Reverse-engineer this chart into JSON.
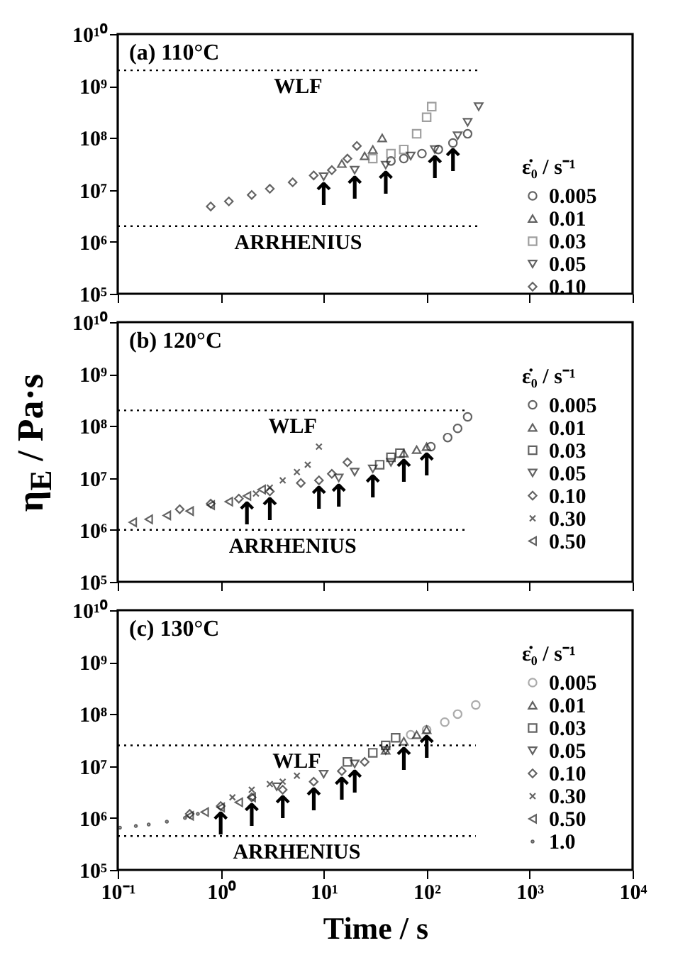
{
  "chart_data": [
    {
      "type": "scatter",
      "title": "(a)  110°C",
      "xlim": [
        0.1,
        10000
      ],
      "ylim": [
        100000,
        10000000000
      ],
      "log": "xy",
      "tick_labels": "y",
      "legend": "bottom right",
      "legend_title": "ε̇₀ / s⁻¹",
      "xticks": [
        {
          "value": 0.1,
          "label": null
        },
        {
          "value": 1,
          "label": null
        },
        {
          "value": 10,
          "label": null
        },
        {
          "value": 100,
          "label": null
        },
        {
          "value": 1000,
          "label": null
        },
        {
          "value": 10000,
          "label": null
        }
      ],
      "yticks": [
        {
          "value": 100000,
          "label": "10⁵"
        },
        {
          "value": 1000000,
          "label": "10⁶"
        },
        {
          "value": 10000000,
          "label": "10⁷"
        },
        {
          "value": 100000000,
          "label": "10⁸"
        },
        {
          "value": 1000000000,
          "label": "10⁹"
        },
        {
          "value": 10000000000,
          "label": "10¹⁰"
        }
      ],
      "series": [
        {
          "name": "0.005",
          "marker": "circle",
          "color": "#222222",
          "x": [
            45,
            60,
            90,
            130,
            180,
            250
          ],
          "values": [
            36000000,
            40000000,
            50000000,
            60000000,
            80000000,
            120000000
          ]
        },
        {
          "name": "0.01",
          "marker": "triangle",
          "color": "#222222",
          "x": [
            15,
            25,
            30,
            37
          ],
          "values": [
            32000000,
            45000000,
            60000000,
            100000000
          ]
        },
        {
          "name": "0.03",
          "marker": "square",
          "color": "#777777",
          "x": [
            30,
            45,
            60,
            80,
            100,
            112
          ],
          "values": [
            40000000,
            50000000,
            60000000,
            120000000,
            250000000,
            400000000
          ]
        },
        {
          "name": "0.05",
          "marker": "triangle-down",
          "color": "#222222",
          "x": [
            10,
            20,
            40,
            70,
            120,
            200,
            250,
            320
          ],
          "values": [
            18000000,
            24000000,
            30000000,
            45000000,
            60000000,
            110000000,
            200000000,
            400000000
          ]
        },
        {
          "name": "0.10",
          "marker": "diamond",
          "color": "#222222",
          "x": [
            0.8,
            1.2,
            2,
            3,
            5,
            8,
            12,
            17,
            21
          ],
          "values": [
            4800000,
            6000000,
            8000000,
            10500000,
            14000000,
            19000000,
            24000000,
            40000000,
            70000000
          ]
        }
      ],
      "ref_lines": [
        {
          "axis": "y",
          "value": 2000000000,
          "label": "WLF",
          "line_style": "dotted"
        },
        {
          "axis": "y",
          "value": 2000000,
          "label": "ARRHENIUS",
          "line_style": "dotted"
        }
      ],
      "annotations": [
        {
          "text": "↑",
          "x": 10,
          "y": 18000000
        },
        {
          "text": "↑",
          "x": 20,
          "y": 24000000
        },
        {
          "text": "↑",
          "x": 40,
          "y": 30000000
        },
        {
          "text": "↑",
          "x": 120,
          "y": 60000000
        },
        {
          "text": "↑",
          "x": 180,
          "y": 80000000
        }
      ]
    },
    {
      "type": "scatter",
      "title": "(b)  120°C",
      "xlim": [
        0.1,
        10000
      ],
      "ylim": [
        100000,
        10000000000
      ],
      "log": "xy",
      "tick_labels": "y",
      "legend": "right",
      "legend_title": "ε̇₀ / s⁻¹",
      "ylabel": "η$_{E}$ / Pa·s",
      "xticks": [
        {
          "value": 0.1,
          "label": null
        },
        {
          "value": 1,
          "label": null
        },
        {
          "value": 10,
          "label": null
        },
        {
          "value": 100,
          "label": null
        },
        {
          "value": 1000,
          "label": null
        },
        {
          "value": 10000,
          "label": null
        }
      ],
      "yticks": [
        {
          "value": 100000,
          "label": "10⁵"
        },
        {
          "value": 1000000,
          "label": "10⁶"
        },
        {
          "value": 10000000,
          "label": "10⁷"
        },
        {
          "value": 100000000,
          "label": "10⁸"
        },
        {
          "value": 1000000000,
          "label": "10⁹"
        },
        {
          "value": 10000000000,
          "label": "10¹⁰"
        }
      ],
      "series": [
        {
          "name": "0.005",
          "marker": "circle",
          "color": "#222222",
          "x": [
            110,
            160,
            200,
            250
          ],
          "values": [
            40000000,
            60000000,
            90000000,
            150000000
          ]
        },
        {
          "name": "0.01",
          "marker": "triangle",
          "color": "#222222",
          "x": [
            60,
            80,
            100
          ],
          "values": [
            30000000,
            35000000,
            40000000
          ]
        },
        {
          "name": "0.03",
          "marker": "square",
          "color": "#222222",
          "x": [
            35,
            45,
            55
          ],
          "values": [
            18000000,
            25000000,
            30000000
          ]
        },
        {
          "name": "0.05",
          "marker": "triangle-down",
          "color": "#222222",
          "x": [
            14,
            20,
            30,
            45
          ],
          "values": [
            10000000,
            13000000,
            15000000,
            20000000
          ]
        },
        {
          "name": "0.10",
          "marker": "diamond",
          "color": "#222222",
          "x": [
            0.4,
            0.8,
            1.5,
            3,
            6,
            9,
            12,
            17
          ],
          "values": [
            2500000,
            3200000,
            4000000,
            5500000,
            8000000,
            9000000,
            12000000,
            20000000
          ]
        },
        {
          "name": "0.30",
          "marker": "cross",
          "color": "#222222",
          "x": [
            2.2,
            3,
            4,
            5.5,
            7,
            9
          ],
          "values": [
            5000000,
            6500000,
            9000000,
            13000000,
            18000000,
            40000000
          ]
        },
        {
          "name": "0.50",
          "marker": "triangle-left",
          "color": "#222222",
          "x": [
            0.14,
            0.2,
            0.3,
            0.5,
            0.8,
            1.2,
            1.8,
            2.5
          ],
          "values": [
            1400000,
            1600000,
            1900000,
            2300000,
            3000000,
            3500000,
            4500000,
            6000000
          ]
        }
      ],
      "ref_lines": [
        {
          "axis": "y",
          "value": 200000000,
          "label": "WLF",
          "line_style": "dotted"
        },
        {
          "axis": "y",
          "value": 1000000,
          "label": "ARRHENIUS",
          "line_style": "dotted"
        }
      ],
      "annotations": [
        {
          "text": "↑",
          "x": 1.8,
          "y": 4500000
        },
        {
          "text": "↑",
          "x": 3,
          "y": 5500000
        },
        {
          "text": "↑",
          "x": 9,
          "y": 9000000
        },
        {
          "text": "↑",
          "x": 14,
          "y": 10000000
        },
        {
          "text": "↑",
          "x": 30,
          "y": 15000000
        },
        {
          "text": "↑",
          "x": 60,
          "y": 30000000
        },
        {
          "text": "↑",
          "x": 100,
          "y": 40000000
        }
      ]
    },
    {
      "type": "scatter",
      "title": "(c)  130°C",
      "xlim": [
        0.1,
        10000
      ],
      "ylim": [
        100000,
        10000000000
      ],
      "log": "xy",
      "legend": "right",
      "legend_title": "ε̇₀ / s⁻¹",
      "xlabel": "Time / s",
      "xticks": [
        {
          "value": 0.1,
          "label": "10⁻¹"
        },
        {
          "value": 1,
          "label": "10⁰"
        },
        {
          "value": 10,
          "label": "10¹"
        },
        {
          "value": 100,
          "label": "10²"
        },
        {
          "value": 1000,
          "label": "10³"
        },
        {
          "value": 10000,
          "label": "10⁴"
        }
      ],
      "yticks": [
        {
          "value": 100000,
          "label": "10⁵"
        },
        {
          "value": 1000000,
          "label": "10⁶"
        },
        {
          "value": 10000000,
          "label": "10⁷"
        },
        {
          "value": 100000000,
          "label": "10⁸"
        },
        {
          "value": 1000000000,
          "label": "10⁹"
        },
        {
          "value": 10000000000,
          "label": "10¹⁰"
        }
      ],
      "series": [
        {
          "name": "0.005",
          "marker": "circle",
          "color": "#888888",
          "x": [
            70,
            100,
            150,
            200,
            300
          ],
          "values": [
            40000000,
            50000000,
            70000000,
            100000000,
            150000000
          ]
        },
        {
          "name": "0.01",
          "marker": "triangle",
          "color": "#222222",
          "x": [
            40,
            60,
            80,
            100
          ],
          "values": [
            20000000,
            30000000,
            40000000,
            50000000
          ]
        },
        {
          "name": "0.03",
          "marker": "square",
          "color": "#222222",
          "x": [
            17,
            30,
            40,
            50
          ],
          "values": [
            12000000,
            18000000,
            25000000,
            35000000
          ]
        },
        {
          "name": "0.05",
          "marker": "triangle-down",
          "color": "#222222",
          "x": [
            3.5,
            10,
            20,
            40
          ],
          "values": [
            4000000,
            7000000,
            11000000,
            20000000
          ]
        },
        {
          "name": "0.10",
          "marker": "diamond",
          "color": "#222222",
          "x": [
            0.5,
            1,
            2,
            4,
            8,
            15,
            25
          ],
          "values": [
            1200000,
            1700000,
            2500000,
            3500000,
            5000000,
            8000000,
            12000000
          ]
        },
        {
          "name": "0.30",
          "marker": "cross",
          "color": "#222222",
          "x": [
            1.3,
            2,
            3,
            4,
            5.5
          ],
          "values": [
            2500000,
            3500000,
            4500000,
            5000000,
            6500000
          ]
        },
        {
          "name": "0.50",
          "marker": "triangle-left",
          "color": "#222222",
          "x": [
            0.5,
            0.7,
            1,
            1.5,
            2
          ],
          "values": [
            1100000,
            1300000,
            1600000,
            2000000,
            2500000
          ]
        },
        {
          "name": "1.0",
          "marker": "point",
          "color": "#222222",
          "x": [
            0.105,
            0.15,
            0.2,
            0.3,
            0.45,
            0.6
          ],
          "values": [
            650000,
            700000,
            750000,
            850000,
            1000000,
            1200000
          ]
        }
      ],
      "ref_lines": [
        {
          "axis": "y",
          "value": 25000000,
          "label": "WLF",
          "line_style": "dotted"
        },
        {
          "axis": "y",
          "value": 450000,
          "label": "ARRHENIUS",
          "line_style": "dotted"
        }
      ],
      "annotations": [
        {
          "text": "↑",
          "x": 1,
          "y": 1700000
        },
        {
          "text": "↑",
          "x": 2,
          "y": 2500000
        },
        {
          "text": "↑",
          "x": 4,
          "y": 3500000
        },
        {
          "text": "↑",
          "x": 8,
          "y": 5000000
        },
        {
          "text": "↑",
          "x": 15,
          "y": 8000000
        },
        {
          "text": "↑",
          "x": 20,
          "y": 11000000
        },
        {
          "text": "↑",
          "x": 60,
          "y": 30000000
        },
        {
          "text": "↑",
          "x": 100,
          "y": 50000000
        }
      ]
    }
  ]
}
